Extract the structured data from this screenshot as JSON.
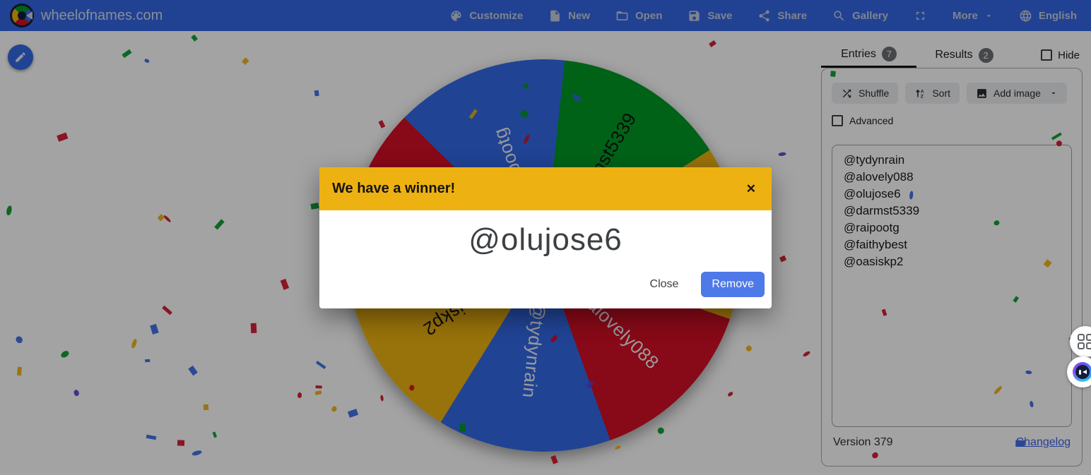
{
  "navbar": {
    "brand": "wheelofnames.com",
    "items": [
      {
        "label": "Customize",
        "icon": "palette-icon"
      },
      {
        "label": "New",
        "icon": "new-file-icon"
      },
      {
        "label": "Open",
        "icon": "open-folder-icon"
      },
      {
        "label": "Save",
        "icon": "save-icon"
      },
      {
        "label": "Share",
        "icon": "share-icon"
      },
      {
        "label": "Gallery",
        "icon": "gallery-search-icon"
      },
      {
        "label": "",
        "icon": "fullscreen-icon"
      },
      {
        "label": "More",
        "icon": "chevron-down-icon"
      },
      {
        "label": "English",
        "icon": "globe-icon"
      }
    ]
  },
  "winner_dialog": {
    "title": "We have a winner!",
    "winner_name": "@olujose6",
    "close_label": "Close",
    "remove_label": "Remove"
  },
  "entries_panel": {
    "tabs": [
      {
        "label": "Entries",
        "count": "7",
        "active": true
      },
      {
        "label": "Results",
        "count": "2",
        "active": false
      }
    ],
    "hide_label": "Hide",
    "shuffle_label": "Shuffle",
    "sort_label": "Sort",
    "add_image_label": "Add image",
    "advanced_label": "Advanced",
    "entries": [
      "@tydynrain",
      "@alovely088",
      "@olujose6",
      "@darmst5339",
      "@raipootg",
      "@faithybest",
      "@oasiskp2"
    ],
    "version_text": "Version 379",
    "changelog_label": "Changelog"
  },
  "wheel": {
    "start_angle_deg": -45.4,
    "segment_sweep_deg": 51.43,
    "segments": [
      {
        "label": "@raipootg",
        "color": "#3369E8",
        "text_color": "#f0f1f4"
      },
      {
        "label": "@darmst5339",
        "color": "#009925",
        "text_color": "#141414"
      },
      {
        "label": "@olujose6",
        "color": "#EEB211",
        "text_color": "#141414"
      },
      {
        "label": "@alovely088",
        "color": "#D50F25",
        "text_color": "#f0f1f4"
      },
      {
        "label": "@tydynrain",
        "color": "#3369E8",
        "text_color": "#f0f1f4"
      },
      {
        "label": "@oasiskp2",
        "color": "#EEB211",
        "text_color": "#141414"
      },
      {
        "label": "@faithybest",
        "color": "#D50F25",
        "text_color": "#f0f1f4"
      }
    ]
  },
  "colors": {
    "navbar_bg": "#3468e6",
    "dialog_header": "#edb111",
    "remove_button": "#4e79e8",
    "confetti": [
      "#D50F25",
      "#3369E8",
      "#EEB211",
      "#009925",
      "#5b3fd4"
    ]
  }
}
